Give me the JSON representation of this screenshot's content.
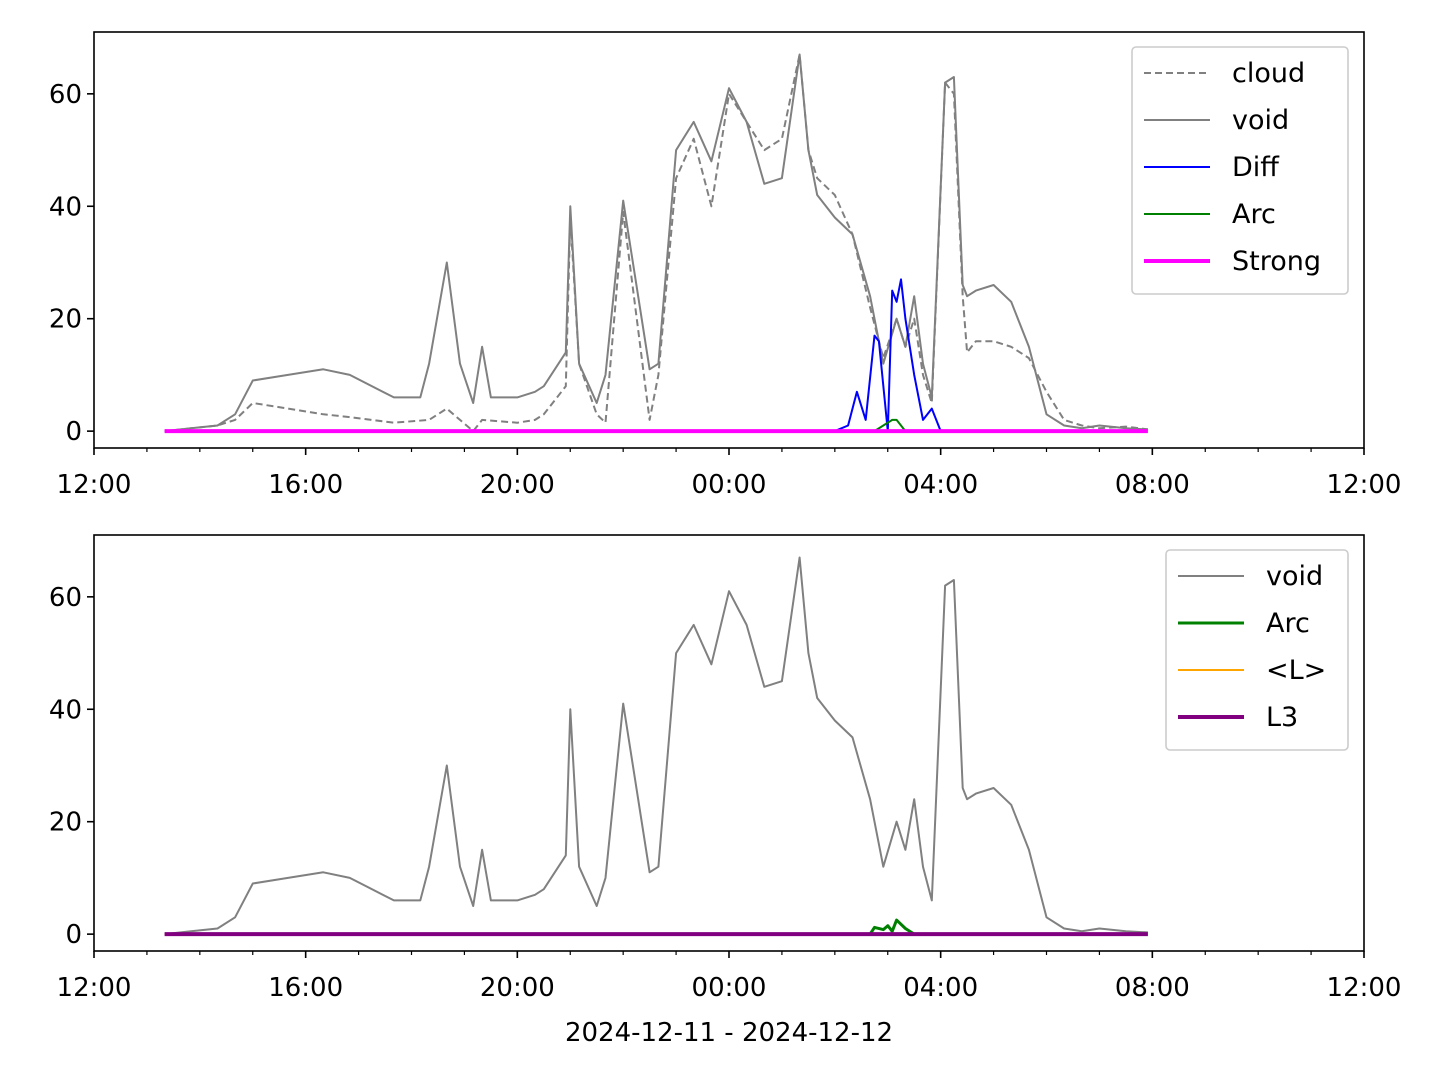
{
  "chart_data": [
    {
      "type": "line",
      "ylim": [
        -3,
        71
      ],
      "xlim": [
        "2024-12-11 12:00",
        "2024-12-12 12:00"
      ],
      "yticks": [
        0,
        20,
        40,
        60
      ],
      "xtick_labels": [
        "12:00",
        "16:00",
        "20:00",
        "00:00",
        "04:00",
        "08:00",
        "12:00"
      ],
      "xlabel": "",
      "legend_position": "top-right",
      "legend": [
        "cloud",
        "void",
        "Diff",
        "Arc",
        "Strong"
      ],
      "colors": {
        "cloud": "#808080",
        "void": "#808080",
        "Diff": "#0000ff",
        "Arc": "#008000",
        "Strong": "#ff00ff"
      },
      "series": [
        {
          "name": "cloud",
          "style": "dashed",
          "x": [
            "2024-12-11 13:20",
            "2024-12-11 13:50",
            "2024-12-11 14:20",
            "2024-12-11 14:40",
            "2024-12-11 15:00",
            "2024-12-11 15:40",
            "2024-12-11 16:20",
            "2024-12-11 16:50",
            "2024-12-11 17:40",
            "2024-12-11 18:20",
            "2024-12-11 18:40",
            "2024-12-11 18:55",
            "2024-12-11 19:10",
            "2024-12-11 19:20",
            "2024-12-11 20:00",
            "2024-12-11 20:20",
            "2024-12-11 20:30",
            "2024-12-11 20:55",
            "2024-12-11 21:00",
            "2024-12-11 21:10",
            "2024-12-11 21:30",
            "2024-12-11 21:40",
            "2024-12-11 22:00",
            "2024-12-11 22:30",
            "2024-12-11 22:40",
            "2024-12-11 23:00",
            "2024-12-11 23:20",
            "2024-12-11 23:40",
            "2024-12-12 00:00",
            "2024-12-12 00:20",
            "2024-12-12 00:40",
            "2024-12-12 01:00",
            "2024-12-12 01:20",
            "2024-12-12 01:30",
            "2024-12-12 01:40",
            "2024-12-12 02:00",
            "2024-12-12 02:20",
            "2024-12-12 02:40",
            "2024-12-12 02:55",
            "2024-12-12 03:10",
            "2024-12-12 03:20",
            "2024-12-12 03:30",
            "2024-12-12 03:40",
            "2024-12-12 03:50",
            "2024-12-12 04:05",
            "2024-12-12 04:15",
            "2024-12-12 04:25",
            "2024-12-12 04:30",
            "2024-12-12 04:40",
            "2024-12-12 05:00",
            "2024-12-12 05:20",
            "2024-12-12 05:40",
            "2024-12-12 06:00",
            "2024-12-12 06:20",
            "2024-12-12 06:40",
            "2024-12-12 07:00",
            "2024-12-12 07:30",
            "2024-12-12 07:55"
          ],
          "y": [
            0,
            0.5,
            1,
            2,
            5,
            4,
            3,
            2.5,
            1.5,
            2,
            4,
            2,
            0,
            2,
            1.5,
            2,
            3,
            8,
            38,
            12,
            3,
            1.5,
            39,
            2,
            10,
            45,
            52,
            40,
            60,
            55,
            50,
            52,
            67,
            50,
            45,
            42,
            35,
            22,
            13,
            20,
            15,
            20,
            10,
            5,
            62,
            60,
            24,
            14,
            16,
            16,
            15,
            13,
            7,
            2,
            1,
            0.5,
            0.8,
            0.3
          ]
        },
        {
          "name": "void",
          "style": "solid",
          "x": [
            "2024-12-11 13:20",
            "2024-12-11 13:50",
            "2024-12-11 14:20",
            "2024-12-11 14:40",
            "2024-12-11 15:00",
            "2024-12-11 15:40",
            "2024-12-11 16:20",
            "2024-12-11 16:50",
            "2024-12-11 17:40",
            "2024-12-11 18:10",
            "2024-12-11 18:20",
            "2024-12-11 18:40",
            "2024-12-11 18:55",
            "2024-12-11 19:10",
            "2024-12-11 19:20",
            "2024-12-11 19:30",
            "2024-12-11 20:00",
            "2024-12-11 20:20",
            "2024-12-11 20:30",
            "2024-12-11 20:55",
            "2024-12-11 21:00",
            "2024-12-11 21:10",
            "2024-12-11 21:30",
            "2024-12-11 21:40",
            "2024-12-11 22:00",
            "2024-12-11 22:30",
            "2024-12-11 22:40",
            "2024-12-11 23:00",
            "2024-12-11 23:20",
            "2024-12-11 23:40",
            "2024-12-12 00:00",
            "2024-12-12 00:20",
            "2024-12-12 00:40",
            "2024-12-12 01:00",
            "2024-12-12 01:20",
            "2024-12-12 01:30",
            "2024-12-12 01:40",
            "2024-12-12 02:00",
            "2024-12-12 02:20",
            "2024-12-12 02:40",
            "2024-12-12 02:55",
            "2024-12-12 03:10",
            "2024-12-12 03:20",
            "2024-12-12 03:30",
            "2024-12-12 03:40",
            "2024-12-12 03:50",
            "2024-12-12 04:05",
            "2024-12-12 04:15",
            "2024-12-12 04:25",
            "2024-12-12 04:30",
            "2024-12-12 04:40",
            "2024-12-12 05:00",
            "2024-12-12 05:20",
            "2024-12-12 05:40",
            "2024-12-12 06:00",
            "2024-12-12 06:20",
            "2024-12-12 06:40",
            "2024-12-12 07:00",
            "2024-12-12 07:30",
            "2024-12-12 07:55"
          ],
          "y": [
            0,
            0.5,
            1,
            3,
            9,
            10,
            11,
            10,
            6,
            6,
            12,
            30,
            12,
            5,
            15,
            6,
            6,
            7,
            8,
            14,
            40,
            12,
            5,
            10,
            41,
            11,
            12,
            50,
            55,
            48,
            61,
            55,
            44,
            45,
            67,
            50,
            42,
            38,
            35,
            24,
            12,
            20,
            15,
            24,
            12,
            6,
            62,
            63,
            26,
            24,
            25,
            26,
            23,
            15,
            3,
            1,
            0.5,
            1,
            0.5,
            0.3
          ]
        },
        {
          "name": "Diff",
          "style": "solid",
          "x": [
            "2024-12-12 02:00",
            "2024-12-12 02:15",
            "2024-12-12 02:25",
            "2024-12-12 02:35",
            "2024-12-12 02:45",
            "2024-12-12 02:50",
            "2024-12-12 03:00",
            "2024-12-12 03:05",
            "2024-12-12 03:10",
            "2024-12-12 03:15",
            "2024-12-12 03:20",
            "2024-12-12 03:30",
            "2024-12-12 03:40",
            "2024-12-12 03:50",
            "2024-12-12 04:00"
          ],
          "y": [
            0,
            1,
            7,
            2,
            17,
            16,
            0,
            25,
            23,
            27,
            20,
            10,
            2,
            4,
            0
          ]
        },
        {
          "name": "Arc",
          "style": "solid",
          "x": [
            "2024-12-12 02:45",
            "2024-12-12 02:55",
            "2024-12-12 03:05",
            "2024-12-12 03:10",
            "2024-12-12 03:20"
          ],
          "y": [
            0,
            1,
            2,
            2,
            0
          ]
        },
        {
          "name": "Strong",
          "style": "solid",
          "x": [
            "2024-12-11 13:20",
            "2024-12-12 07:55"
          ],
          "y": [
            0,
            0
          ]
        }
      ]
    },
    {
      "type": "line",
      "ylim": [
        -3,
        71
      ],
      "xlim": [
        "2024-12-11 12:00",
        "2024-12-12 12:00"
      ],
      "yticks": [
        0,
        20,
        40,
        60
      ],
      "xtick_labels": [
        "12:00",
        "16:00",
        "20:00",
        "00:00",
        "04:00",
        "08:00",
        "12:00"
      ],
      "xlabel": "2024-12-11 - 2024-12-12",
      "legend_position": "top-right",
      "legend": [
        "void",
        "Arc",
        "<L>",
        "L3"
      ],
      "colors": {
        "void": "#808080",
        "Arc": "#008000",
        "<L>": "#ffa500",
        "L3": "#800080"
      },
      "series": [
        {
          "name": "void",
          "style": "solid",
          "x": [
            "2024-12-11 13:20",
            "2024-12-11 13:50",
            "2024-12-11 14:20",
            "2024-12-11 14:40",
            "2024-12-11 15:00",
            "2024-12-11 15:40",
            "2024-12-11 16:20",
            "2024-12-11 16:50",
            "2024-12-11 17:40",
            "2024-12-11 18:10",
            "2024-12-11 18:20",
            "2024-12-11 18:40",
            "2024-12-11 18:55",
            "2024-12-11 19:10",
            "2024-12-11 19:20",
            "2024-12-11 19:30",
            "2024-12-11 20:00",
            "2024-12-11 20:20",
            "2024-12-11 20:30",
            "2024-12-11 20:55",
            "2024-12-11 21:00",
            "2024-12-11 21:10",
            "2024-12-11 21:30",
            "2024-12-11 21:40",
            "2024-12-11 22:00",
            "2024-12-11 22:30",
            "2024-12-11 22:40",
            "2024-12-11 23:00",
            "2024-12-11 23:20",
            "2024-12-11 23:40",
            "2024-12-12 00:00",
            "2024-12-12 00:20",
            "2024-12-12 00:40",
            "2024-12-12 01:00",
            "2024-12-12 01:20",
            "2024-12-12 01:30",
            "2024-12-12 01:40",
            "2024-12-12 02:00",
            "2024-12-12 02:20",
            "2024-12-12 02:40",
            "2024-12-12 02:55",
            "2024-12-12 03:10",
            "2024-12-12 03:20",
            "2024-12-12 03:30",
            "2024-12-12 03:40",
            "2024-12-12 03:50",
            "2024-12-12 04:05",
            "2024-12-12 04:15",
            "2024-12-12 04:25",
            "2024-12-12 04:30",
            "2024-12-12 04:40",
            "2024-12-12 05:00",
            "2024-12-12 05:20",
            "2024-12-12 05:40",
            "2024-12-12 06:00",
            "2024-12-12 06:20",
            "2024-12-12 06:40",
            "2024-12-12 07:00",
            "2024-12-12 07:30",
            "2024-12-12 07:55"
          ],
          "y": [
            0,
            0.5,
            1,
            3,
            9,
            10,
            11,
            10,
            6,
            6,
            12,
            30,
            12,
            5,
            15,
            6,
            6,
            7,
            8,
            14,
            40,
            12,
            5,
            10,
            41,
            11,
            12,
            50,
            55,
            48,
            61,
            55,
            44,
            45,
            67,
            50,
            42,
            38,
            35,
            24,
            12,
            20,
            15,
            24,
            12,
            6,
            62,
            63,
            26,
            24,
            25,
            26,
            23,
            15,
            3,
            1,
            0.5,
            1,
            0.5,
            0.3
          ]
        },
        {
          "name": "Arc",
          "style": "solid",
          "x": [
            "2024-12-12 02:40",
            "2024-12-12 02:45",
            "2024-12-12 02:55",
            "2024-12-12 03:00",
            "2024-12-12 03:05",
            "2024-12-12 03:10",
            "2024-12-12 03:20",
            "2024-12-12 03:30"
          ],
          "y": [
            0,
            1.2,
            0.8,
            1.5,
            0.5,
            2.5,
            1,
            0
          ]
        },
        {
          "name": "<L>",
          "style": "solid",
          "x": [
            "2024-12-11 13:20",
            "2024-12-12 07:55"
          ],
          "y": [
            0,
            0
          ]
        },
        {
          "name": "L3",
          "style": "solid",
          "x": [
            "2024-12-11 13:20",
            "2024-12-12 07:55"
          ],
          "y": [
            0,
            0
          ]
        }
      ]
    }
  ]
}
